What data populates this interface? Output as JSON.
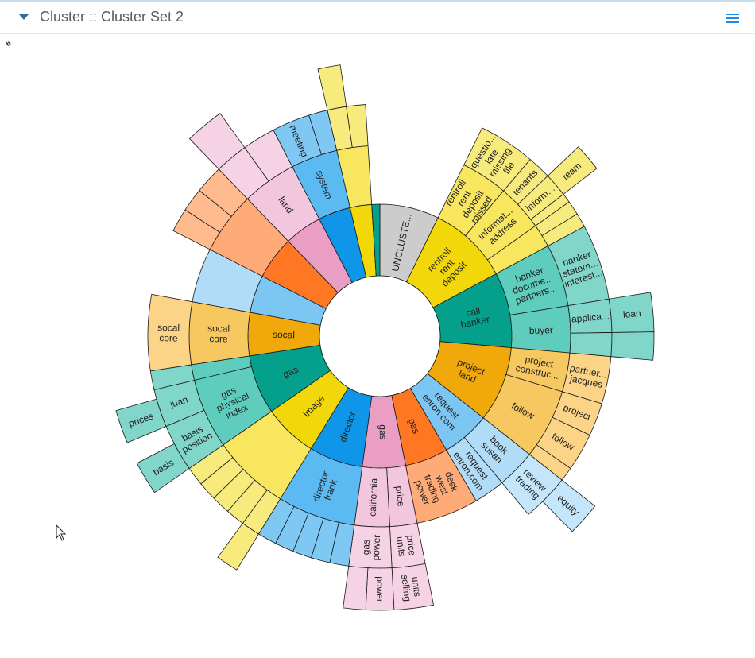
{
  "window": {
    "title": "Cluster :: Cluster Set 2"
  },
  "icons": {
    "collapse": "caret-down-icon",
    "menu": "hamburger-menu-icon",
    "expand": "double-chevron-right-icon",
    "cursor": "mouse-pointer-icon"
  },
  "toolbar": {
    "expand_label": "»"
  },
  "colors": {
    "title": "#5a5a5a",
    "accent": "#1e88e5",
    "gray": "#b0c4d4",
    "yellow1": "#f2d80a",
    "yellow2": "#f7e65e",
    "yellow3": "#f8eb7e",
    "teal1": "#04a08b",
    "teal2": "#5ecdbd",
    "teal3": "#80d6c8",
    "orange1": "#f0a80a",
    "orange2": "#f8c860",
    "orange3": "#fbd488",
    "lightblue1": "#7cc6f4",
    "lightblue2": "#b0dcf8",
    "lightblue3": "#c4e6fb",
    "redorange1": "#ff7722",
    "redorange2": "#ffab77",
    "redorange3": "#ffbb8e",
    "pink1": "#ea9ec4",
    "pink2": "#f2c6dc",
    "pink3": "#f5d2e4",
    "blue1": "#0f96e8",
    "blue2": "#5cbaf2",
    "blue3": "#7fc8f4"
  },
  "chart_data": {
    "type": "sunburst",
    "root": "",
    "children": [
      {
        "label": "UNCLUSTE...",
        "color": "gray",
        "weight": 22,
        "children": []
      },
      {
        "label": "rentroll\nrent\ndeposit",
        "color": "yellow1",
        "weight": 30,
        "children": [
          {
            "label": "rentroll\nrent\ndeposit\nmissed",
            "weight": 12,
            "children": [
              {
                "label": "questio...\nlate\nmissing\nfile",
                "weight": 12
              }
            ]
          },
          {
            "label": "informat...\naddress",
            "weight": 12,
            "children": [
              {
                "label": "tenants",
                "weight": 5
              },
              {
                "label": "inform...",
                "weight": 5,
                "children": [
                  {
                    "label": "team",
                    "weight": 5
                  }
                ]
              },
              {
                "label": "",
                "weight": 2
              }
            ]
          },
          {
            "label": "",
            "weight": 6,
            "children": [
              {
                "label": "",
                "weight": 3
              },
              {
                "label": "",
                "weight": 3
              }
            ]
          }
        ]
      },
      {
        "label": "call\nbanker",
        "color": "teal1",
        "weight": 28,
        "children": [
          {
            "label": "banker\ndocume...\npartners...",
            "weight": 16,
            "children": [
              {
                "label": "banker\nstatem...\ninterest...",
                "weight": 16
              }
            ]
          },
          {
            "label": "buyer",
            "weight": 12,
            "children": [
              {
                "label": "applica...",
                "weight": 7,
                "children": [
                  {
                    "label": "loan",
                    "weight": 7
                  }
                ]
              },
              {
                "label": "",
                "weight": 5,
                "children": [
                  {
                    "label": "",
                    "weight": 5
                  }
                ]
              }
            ]
          }
        ]
      },
      {
        "label": "project\nland",
        "color": "orange1",
        "weight": 28,
        "children": [
          {
            "label": "project\nconstruc...",
            "weight": 10,
            "children": [
              {
                "label": "partner...\njacques",
                "weight": 10
              }
            ]
          },
          {
            "label": "follow",
            "weight": 18,
            "children": [
              {
                "label": "project",
                "weight": 7
              },
              {
                "label": "follow",
                "weight": 8
              },
              {
                "label": "",
                "weight": 3
              }
            ]
          }
        ]
      },
      {
        "label": "request\nenron.com",
        "color": "lightblue1",
        "weight": 18,
        "children": [
          {
            "label": "book\nsusan",
            "weight": 10,
            "children": [
              {
                "label": "review\ntrading",
                "weight": 10,
                "children": [
                  {
                    "label": "equity",
                    "weight": 6
                  }
                ]
              }
            ]
          },
          {
            "label": "request\nenron.com",
            "weight": 8,
            "children": []
          }
        ]
      },
      {
        "label": "gas",
        "color": "redorange1",
        "weight": 16,
        "children": [
          {
            "label": "desk\nwest\ntrading\npower",
            "weight": 16,
            "children": []
          }
        ]
      },
      {
        "label": "gas",
        "color": "pink1",
        "weight": 16,
        "children": [
          {
            "label": "price",
            "weight": 7,
            "children": [
              {
                "label": "price\nunits",
                "weight": 7,
                "children": [
                  {
                    "label": "units\nselling",
                    "weight": 7
                  }
                ]
              }
            ]
          },
          {
            "label": "california",
            "weight": 9,
            "children": [
              {
                "label": "gas\npower",
                "weight": 9,
                "children": [
                  {
                    "label": "power",
                    "weight": 5
                  },
                  {
                    "label": "",
                    "weight": 4
                  }
                ]
              }
            ]
          }
        ]
      },
      {
        "label": "director",
        "color": "blue1",
        "weight": 20,
        "children": [
          {
            "label": "director\nfrank",
            "weight": 20,
            "children": [
              {
                "label": "",
                "weight": 4
              },
              {
                "label": "",
                "weight": 4
              },
              {
                "label": "",
                "weight": 4
              },
              {
                "label": "",
                "weight": 4
              },
              {
                "label": "",
                "weight": 4
              }
            ]
          }
        ]
      },
      {
        "label": "image",
        "color": "yellow1",
        "weight": 20,
        "children": [
          {
            "label": "",
            "weight": 20,
            "children": [
              {
                "label": "",
                "weight": 4,
                "children": [
                  {
                    "label": "",
                    "weight": 4
                  }
                ]
              },
              {
                "label": "",
                "weight": 4
              },
              {
                "label": "",
                "weight": 4
              },
              {
                "label": "",
                "weight": 4
              },
              {
                "label": "",
                "weight": 4
              }
            ]
          }
        ]
      },
      {
        "label": "gas",
        "color": "teal1",
        "weight": 22,
        "children": [
          {
            "label": "gas\nphysical\nindex",
            "weight": 18,
            "children": [
              {
                "label": "basis\nposition",
                "weight": 10,
                "children": [
                  {
                    "label": "basis",
                    "weight": 6
                  }
                ]
              },
              {
                "label": "juan",
                "weight": 8,
                "children": [
                  {
                    "label": "prices",
                    "weight": 6
                  }
                ]
              }
            ]
          },
          {
            "label": "",
            "weight": 4,
            "children": [
              {
                "label": "",
                "weight": 4
              }
            ]
          }
        ]
      },
      {
        "label": "socal",
        "color": "orange1",
        "weight": 16,
        "children": [
          {
            "label": "socal\ncore",
            "weight": 16,
            "children": [
              {
                "label": "socal\ncore",
                "weight": 16
              }
            ]
          }
        ]
      },
      {
        "label": "",
        "color": "lightblue1",
        "weight": 14,
        "children": [
          {
            "label": "",
            "weight": 14,
            "children": []
          }
        ]
      },
      {
        "label": "",
        "color": "redorange1",
        "weight": 16,
        "children": [
          {
            "label": "",
            "weight": 16,
            "children": [
              {
                "label": "",
                "weight": 5
              },
              {
                "label": "",
                "weight": 5
              },
              {
                "label": "",
                "weight": 6
              }
            ]
          }
        ]
      },
      {
        "label": "",
        "color": "pink1",
        "weight": 14,
        "children": [
          {
            "label": "land",
            "weight": 14,
            "children": [
              {
                "label": "",
                "weight": 7,
                "children": [
                  {
                    "label": "",
                    "weight": 7
                  }
                ]
              },
              {
                "label": "",
                "weight": 7
              }
            ]
          }
        ]
      },
      {
        "label": "",
        "color": "blue1",
        "weight": 12,
        "children": [
          {
            "label": "system",
            "weight": 12,
            "children": [
              {
                "label": "meeting",
                "weight": 8
              },
              {
                "label": "",
                "weight": 4
              }
            ]
          }
        ]
      },
      {
        "label": "",
        "color": "yellow1",
        "weight": 8,
        "children": [
          {
            "label": "",
            "weight": 8,
            "children": [
              {
                "label": "",
                "weight": 4,
                "children": [
                  {
                    "label": "",
                    "weight": 4
                  }
                ]
              },
              {
                "label": "",
                "weight": 4
              }
            ]
          }
        ]
      },
      {
        "label": "",
        "color": "teal1",
        "weight": 3,
        "children": []
      }
    ]
  }
}
